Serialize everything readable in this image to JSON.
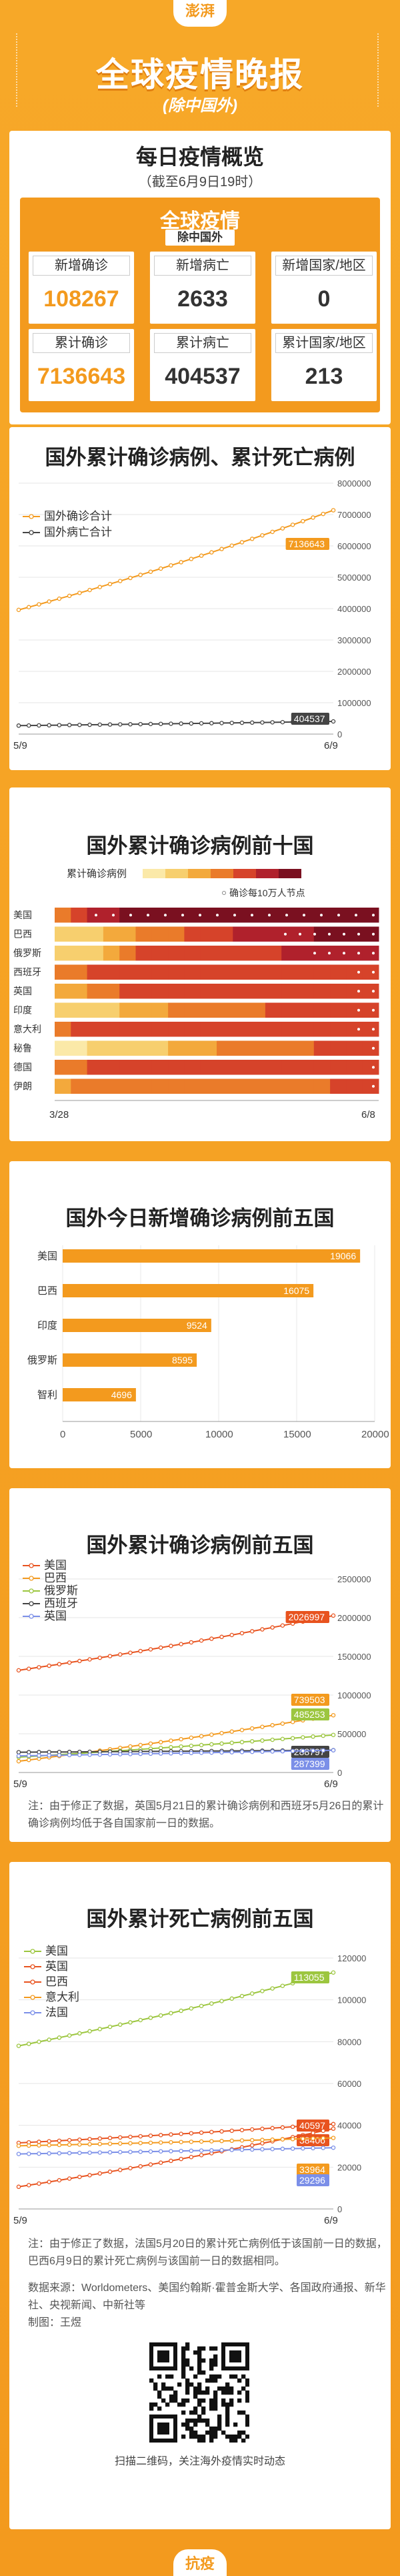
{
  "header": {
    "brand": "澎湃",
    "title": "全球疫情晚报",
    "subtitle": "(除中国外)"
  },
  "overview": {
    "title": "每日疫情概览",
    "date_note": "（截至6月9日19时）",
    "card_title": "全球疫情",
    "card_subtitle": "除中国外",
    "stats": [
      {
        "label": "新增确诊",
        "value": "108267",
        "color": "#f39a1e"
      },
      {
        "label": "新增病亡",
        "value": "2633",
        "color": "#333333"
      },
      {
        "label": "新增国家/地区",
        "value": "0",
        "color": "#333333"
      },
      {
        "label": "累计确诊",
        "value": "7136643",
        "color": "#f39a1e"
      },
      {
        "label": "累计病亡",
        "value": "404537",
        "color": "#333333"
      },
      {
        "label": "累计国家/地区",
        "value": "213",
        "color": "#333333"
      }
    ]
  },
  "chart_data": [
    {
      "id": "cumulative",
      "type": "line",
      "title": "国外累计确诊病例、累计死亡病例",
      "x_labels": [
        "5/9",
        "6/9"
      ],
      "ylim": [
        0,
        8000000
      ],
      "yticks": [
        "0",
        "1000000",
        "2000000",
        "3000000",
        "4000000",
        "5000000",
        "6000000",
        "7000000",
        "8000000"
      ],
      "series": [
        {
          "name": "国外确诊合计",
          "color": "#f39a1e",
          "start": 3960000,
          "end": 7136643,
          "end_label": "7136643"
        },
        {
          "name": "国外病亡合计",
          "color": "#444444",
          "start": 270000,
          "end": 404537,
          "end_label": "404537"
        }
      ]
    },
    {
      "id": "top10",
      "type": "heatmap",
      "title": "国外累计确诊病例前十国",
      "legend_title": "累计确诊病例",
      "legend_note": "确诊每10万人节点",
      "x_labels": [
        "3/28",
        "6/8"
      ],
      "levels": [
        "#fbe9a8",
        "#f7cf6e",
        "#f3a93c",
        "#ea7b2a",
        "#d6432a",
        "#b0212c",
        "#7a1020"
      ],
      "rows": [
        {
          "name": "美国",
          "cells": [
            3,
            4,
            5,
            5,
            6,
            6,
            6,
            6,
            6,
            6,
            6,
            6,
            6,
            6,
            6,
            6,
            6,
            6,
            6,
            6
          ],
          "dots": 18
        },
        {
          "name": "巴西",
          "cells": [
            1,
            1,
            1,
            2,
            2,
            3,
            3,
            3,
            4,
            4,
            4,
            5,
            5,
            5,
            5,
            5,
            6,
            6,
            6,
            6
          ],
          "dots": 7
        },
        {
          "name": "俄罗斯",
          "cells": [
            1,
            1,
            1,
            2,
            3,
            4,
            4,
            4,
            4,
            4,
            4,
            4,
            4,
            4,
            5,
            5,
            5,
            5,
            5,
            5
          ],
          "dots": 5
        },
        {
          "name": "西班牙",
          "cells": [
            3,
            3,
            4,
            4,
            4,
            4,
            4,
            4,
            4,
            4,
            4,
            4,
            4,
            4,
            4,
            4,
            4,
            4,
            4,
            4
          ],
          "dots": 2
        },
        {
          "name": "英国",
          "cells": [
            2,
            2,
            3,
            3,
            4,
            4,
            4,
            4,
            4,
            4,
            4,
            4,
            4,
            4,
            4,
            4,
            4,
            4,
            4,
            4
          ],
          "dots": 2
        },
        {
          "name": "印度",
          "cells": [
            1,
            1,
            1,
            1,
            2,
            2,
            2,
            3,
            3,
            3,
            3,
            3,
            3,
            4,
            4,
            4,
            4,
            4,
            4,
            4
          ],
          "dots": 2
        },
        {
          "name": "意大利",
          "cells": [
            3,
            4,
            4,
            4,
            4,
            4,
            4,
            4,
            4,
            4,
            4,
            4,
            4,
            4,
            4,
            4,
            4,
            4,
            4,
            4
          ],
          "dots": 2
        },
        {
          "name": "秘鲁",
          "cells": [
            0,
            0,
            1,
            1,
            1,
            1,
            1,
            2,
            2,
            2,
            3,
            3,
            3,
            3,
            3,
            3,
            4,
            4,
            4,
            4
          ],
          "dots": 1
        },
        {
          "name": "德国",
          "cells": [
            3,
            3,
            4,
            4,
            4,
            4,
            4,
            4,
            4,
            4,
            4,
            4,
            4,
            4,
            4,
            4,
            4,
            4,
            4,
            4
          ],
          "dots": 1
        },
        {
          "name": "伊朗",
          "cells": [
            2,
            3,
            3,
            3,
            3,
            3,
            3,
            3,
            3,
            3,
            3,
            3,
            3,
            3,
            3,
            3,
            3,
            4,
            4,
            4
          ],
          "dots": 1
        }
      ]
    },
    {
      "id": "new_top5",
      "type": "bar",
      "title": "国外今日新增确诊病例前五国",
      "categories": [
        "美国",
        "巴西",
        "印度",
        "俄罗斯",
        "智利"
      ],
      "values": [
        19066,
        16075,
        9524,
        8595,
        4696
      ],
      "xlim": [
        0,
        20000
      ],
      "xticks": [
        "0",
        "5000",
        "10000",
        "15000",
        "20000"
      ],
      "color": "#f39a1e"
    },
    {
      "id": "cases_top5",
      "type": "line",
      "title": "国外累计确诊病例前五国",
      "x_labels": [
        "5/9",
        "6/9"
      ],
      "ylim": [
        0,
        2500000
      ],
      "yticks": [
        "0",
        "500000",
        "1000000",
        "1500000",
        "2000000",
        "2500000"
      ],
      "series": [
        {
          "name": "美国",
          "color": "#e8531f",
          "start": 1320000,
          "end": 2026997,
          "end_label": "2026997"
        },
        {
          "name": "巴西",
          "color": "#f39a1e",
          "start": 146000,
          "end": 739503,
          "end_label": "739503"
        },
        {
          "name": "俄罗斯",
          "color": "#9cc63f",
          "start": 198000,
          "end": 485253,
          "end_label": "485253"
        },
        {
          "name": "西班牙",
          "color": "#444444",
          "start": 262000,
          "end": 288797,
          "end_label": "288797"
        },
        {
          "name": "英国",
          "color": "#7b8fe8",
          "start": 215000,
          "end": 287399,
          "end_label": "287399"
        }
      ],
      "note": "注：由于修正了数据，英国5月21日的累计确诊病例和西班牙5月26日的累计确诊病例均低于各自国家前一日的数据。"
    },
    {
      "id": "deaths_top5",
      "type": "line",
      "title": "国外累计死亡病例前五国",
      "x_labels": [
        "5/9",
        "6/9"
      ],
      "ylim": [
        0,
        120000
      ],
      "yticks": [
        "0",
        "20000",
        "40000",
        "60000",
        "80000",
        "100000",
        "120000"
      ],
      "series": [
        {
          "name": "美国",
          "color": "#9cc63f",
          "start": 78000,
          "end": 113055,
          "end_label": "113055"
        },
        {
          "name": "英国",
          "color": "#e8531f",
          "start": 31600,
          "end": 40597,
          "end_label": "40597"
        },
        {
          "name": "巴西",
          "color": "#e8531f",
          "start": 10600,
          "end": 38406,
          "end_label": "38406"
        },
        {
          "name": "意大利",
          "color": "#f39a1e",
          "start": 30200,
          "end": 33964,
          "end_label": "33964"
        },
        {
          "name": "法国",
          "color": "#7b8fe8",
          "start": 26300,
          "end": 29296,
          "end_label": "29296"
        }
      ],
      "note": "注：由于修正了数据，法国5月20日的累计死亡病例低于该国前一日的数据，巴西6月9日的累计死亡病例与该国前一日的数据相同。"
    }
  ],
  "footer": {
    "source": "数据来源：Worldometers、美国约翰斯·霍普金斯大学、各国政府通报、新华社、央视新闻、中新社等",
    "author": "制图：王煜",
    "qr_caption": "扫描二维码，关注海外疫情实时动态",
    "brand": "抗疫"
  }
}
